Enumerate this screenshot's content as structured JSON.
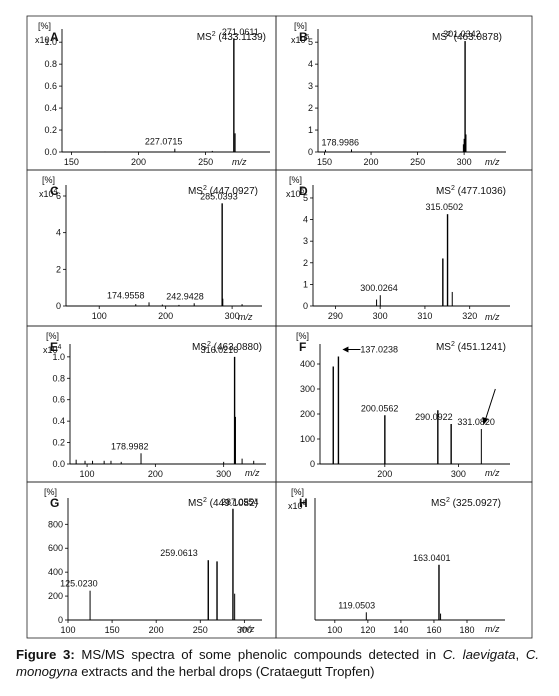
{
  "caption": {
    "label": "Figure 3:",
    "text_1": " MS/MS spectra of some phenolic compounds detected in ",
    "species_1": "C. laevigata",
    "text_2": ", ",
    "species_2": "C. monogyna",
    "text_3": " extracts and the herbal drops (Crataegutt Tropfen)"
  },
  "chart_data": [
    {
      "type": "bar",
      "panel": "A",
      "precursor_prefix": "MS",
      "precursor_sup": "2",
      "precursor_mz": "(433.1139)",
      "y_unit": "[%]",
      "y_scale_base": "x10",
      "y_scale_exp": "",
      "xlabel": "m/z",
      "xlim": [
        143,
        298
      ],
      "ylim": [
        0,
        1.12
      ],
      "x_ticks": [
        150,
        200,
        250,
        300
      ],
      "y_ticks": [
        {
          "v": 0.0,
          "t": "0.0"
        },
        {
          "v": 0.2,
          "t": "0.2"
        },
        {
          "v": 0.4,
          "t": "0.4"
        },
        {
          "v": 0.6,
          "t": "0.6"
        },
        {
          "v": 0.8,
          "t": "0.8"
        },
        {
          "v": 1.0,
          "t": "1.0"
        }
      ],
      "peaks": [
        {
          "x": 271.0611,
          "y": 1.03,
          "label": "271.0611"
        },
        {
          "x": 272.0,
          "y": 0.17
        },
        {
          "x": 227.0715,
          "y": 0.03,
          "label": "227.0715"
        },
        {
          "x": 175,
          "y": 0.005
        },
        {
          "x": 200,
          "y": 0.005
        },
        {
          "x": 255,
          "y": 0.01
        }
      ]
    },
    {
      "type": "bar",
      "panel": "B",
      "precursor_prefix": "MS",
      "precursor_sup": "2",
      "precursor_mz": "(463.0878)",
      "y_unit": "[%]",
      "y_scale_base": "x10",
      "y_scale_exp": "5",
      "xlabel": "m/z",
      "xlim": [
        143,
        345
      ],
      "ylim": [
        0,
        5.6
      ],
      "x_ticks": [
        150,
        200,
        250,
        300
      ],
      "y_ticks": [
        {
          "v": 0,
          "t": "0"
        },
        {
          "v": 1,
          "t": "1"
        },
        {
          "v": 2,
          "t": "2"
        },
        {
          "v": 3,
          "t": "3"
        },
        {
          "v": 4,
          "t": "4"
        },
        {
          "v": 5,
          "t": "5"
        }
      ],
      "peaks": [
        {
          "x": 301.0342,
          "y": 5.05,
          "label": "301.0342"
        },
        {
          "x": 300.0,
          "y": 0.6
        },
        {
          "x": 302.0,
          "y": 0.8
        },
        {
          "x": 299.2,
          "y": 0.35
        },
        {
          "x": 178.9986,
          "y": 0.12,
          "label": "178.9986"
        },
        {
          "x": 151.0,
          "y": 0.1
        }
      ]
    },
    {
      "type": "bar",
      "panel": "C",
      "precursor_prefix": "MS",
      "precursor_sup": "2",
      "precursor_mz": "(447.0927)",
      "y_unit": "[%]",
      "y_scale_base": "x10",
      "y_scale_exp": "4",
      "xlabel": "m/z",
      "xlim": [
        50,
        345
      ],
      "ylim": [
        0,
        6.6
      ],
      "x_ticks": [
        100,
        200,
        300
      ],
      "y_ticks": [
        {
          "v": 0,
          "t": "0"
        },
        {
          "v": 2,
          "t": "2"
        },
        {
          "v": 4,
          "t": "4"
        },
        {
          "v": 6,
          "t": "6"
        }
      ],
      "peaks": [
        {
          "x": 285.0393,
          "y": 5.6,
          "label": "285.0393"
        },
        {
          "x": 286.0,
          "y": 0.4
        },
        {
          "x": 174.9558,
          "y": 0.2,
          "label": "174.9558"
        },
        {
          "x": 242.9428,
          "y": 0.15,
          "label": "242.9428"
        },
        {
          "x": 155,
          "y": 0.1
        },
        {
          "x": 195,
          "y": 0.08
        },
        {
          "x": 220,
          "y": 0.06
        },
        {
          "x": 315,
          "y": 0.1
        }
      ]
    },
    {
      "type": "bar",
      "panel": "D",
      "precursor_prefix": "MS",
      "precursor_sup": "2",
      "precursor_mz": "(477.1036)",
      "y_unit": "[%]",
      "y_scale_base": "x10",
      "y_scale_exp": "5",
      "xlabel": "m/z",
      "xlim": [
        285,
        329
      ],
      "ylim": [
        0,
        5.6
      ],
      "x_ticks": [
        290,
        300,
        310,
        320
      ],
      "y_ticks": [
        {
          "v": 0,
          "t": "0"
        },
        {
          "v": 1,
          "t": "1"
        },
        {
          "v": 2,
          "t": "2"
        },
        {
          "v": 3,
          "t": "3"
        },
        {
          "v": 4,
          "t": "4"
        },
        {
          "v": 5,
          "t": "5"
        }
      ],
      "peaks": [
        {
          "x": 315.0502,
          "y": 4.25,
          "label": "315.0502"
        },
        {
          "x": 314.0,
          "y": 2.2
        },
        {
          "x": 316.1,
          "y": 0.65
        },
        {
          "x": 300.0264,
          "y": 0.5,
          "label": "300.0264"
        },
        {
          "x": 299.2,
          "y": 0.3
        }
      ]
    },
    {
      "type": "bar",
      "panel": "E",
      "precursor_prefix": "MS",
      "precursor_sup": "2",
      "precursor_mz": "(463.0880)",
      "y_unit": "[%]",
      "y_scale_base": "x10",
      "y_scale_exp": "4",
      "xlabel": "m/z",
      "xlim": [
        75,
        362
      ],
      "ylim": [
        0,
        1.12
      ],
      "x_ticks": [
        100,
        200,
        300
      ],
      "y_ticks": [
        {
          "v": 0.0,
          "t": "0.0"
        },
        {
          "v": 0.2,
          "t": "0.2"
        },
        {
          "v": 0.4,
          "t": "0.4"
        },
        {
          "v": 0.6,
          "t": "0.6"
        },
        {
          "v": 0.8,
          "t": "0.8"
        },
        {
          "v": 1.0,
          "t": "1.0"
        }
      ],
      "peaks": [
        {
          "x": 316.0216,
          "y": 1.0,
          "label": "316.0216"
        },
        {
          "x": 317.0,
          "y": 0.44
        },
        {
          "x": 178.9982,
          "y": 0.1,
          "label": "178.9982"
        },
        {
          "x": 84,
          "y": 0.04
        },
        {
          "x": 97,
          "y": 0.03
        },
        {
          "x": 108,
          "y": 0.03
        },
        {
          "x": 125,
          "y": 0.03
        },
        {
          "x": 135,
          "y": 0.03
        },
        {
          "x": 150,
          "y": 0.02
        },
        {
          "x": 300,
          "y": 0.02
        },
        {
          "x": 327,
          "y": 0.05
        },
        {
          "x": 344,
          "y": 0.03
        }
      ]
    },
    {
      "type": "bar",
      "panel": "F",
      "precursor_prefix": "MS",
      "precursor_sup": "2",
      "precursor_mz": "(451.1241)",
      "y_unit": "[%]",
      "y_scale_base": "",
      "y_scale_exp": "",
      "xlabel": "m/z",
      "xlim": [
        112,
        370
      ],
      "ylim": [
        0,
        480
      ],
      "x_ticks": [
        100,
        200,
        300
      ],
      "y_ticks": [
        {
          "v": 0,
          "t": "0"
        },
        {
          "v": 100,
          "t": "100"
        },
        {
          "v": 200,
          "t": "200"
        },
        {
          "v": 300,
          "t": "300"
        },
        {
          "v": 400,
          "t": "400"
        }
      ],
      "peaks": [
        {
          "x": 137.0238,
          "y": 430,
          "label": "137.0238"
        },
        {
          "x": 130,
          "y": 390
        },
        {
          "x": 200.0562,
          "y": 195,
          "label": "200.0562"
        },
        {
          "x": 290.0922,
          "y": 160,
          "label": "290.0922"
        },
        {
          "x": 272,
          "y": 215
        },
        {
          "x": 331.082,
          "y": 140,
          "label": "331.0820"
        }
      ]
    },
    {
      "type": "bar",
      "panel": "G",
      "precursor_prefix": "MS",
      "precursor_sup": "2",
      "precursor_mz": "(449.1082)",
      "y_unit": "[%]",
      "y_scale_base": "",
      "y_scale_exp": "",
      "xlabel": "m/z",
      "xlim": [
        100,
        320
      ],
      "ylim": [
        0,
        1020
      ],
      "x_ticks": [
        100,
        150,
        200,
        250,
        300
      ],
      "y_ticks": [
        {
          "v": 0,
          "t": "0"
        },
        {
          "v": 200,
          "t": "200"
        },
        {
          "v": 400,
          "t": "400"
        },
        {
          "v": 600,
          "t": "600"
        },
        {
          "v": 800,
          "t": "800"
        }
      ],
      "peaks": [
        {
          "x": 287.0554,
          "y": 930,
          "label": "287.0554"
        },
        {
          "x": 289,
          "y": 220
        },
        {
          "x": 259.0613,
          "y": 500,
          "label": "259.0613"
        },
        {
          "x": 269,
          "y": 490
        },
        {
          "x": 125.023,
          "y": 245,
          "label": "125.0230"
        }
      ]
    },
    {
      "type": "bar",
      "panel": "H",
      "precursor_prefix": "MS",
      "precursor_sup": "2",
      "precursor_mz": "(325.0927)",
      "y_unit": "[%]",
      "y_scale_base": "x10",
      "y_scale_exp": "6",
      "xlabel": "m/z",
      "xlim": [
        88,
        203
      ],
      "ylim": [
        0,
        0.95
      ],
      "x_ticks": [
        100,
        120,
        140,
        160,
        180
      ],
      "y_ticks": [],
      "peaks": [
        {
          "x": 163.0401,
          "y": 0.43,
          "label": "163.0401"
        },
        {
          "x": 164.0,
          "y": 0.05
        },
        {
          "x": 119.0503,
          "y": 0.06,
          "label": "119.0503"
        }
      ]
    }
  ]
}
